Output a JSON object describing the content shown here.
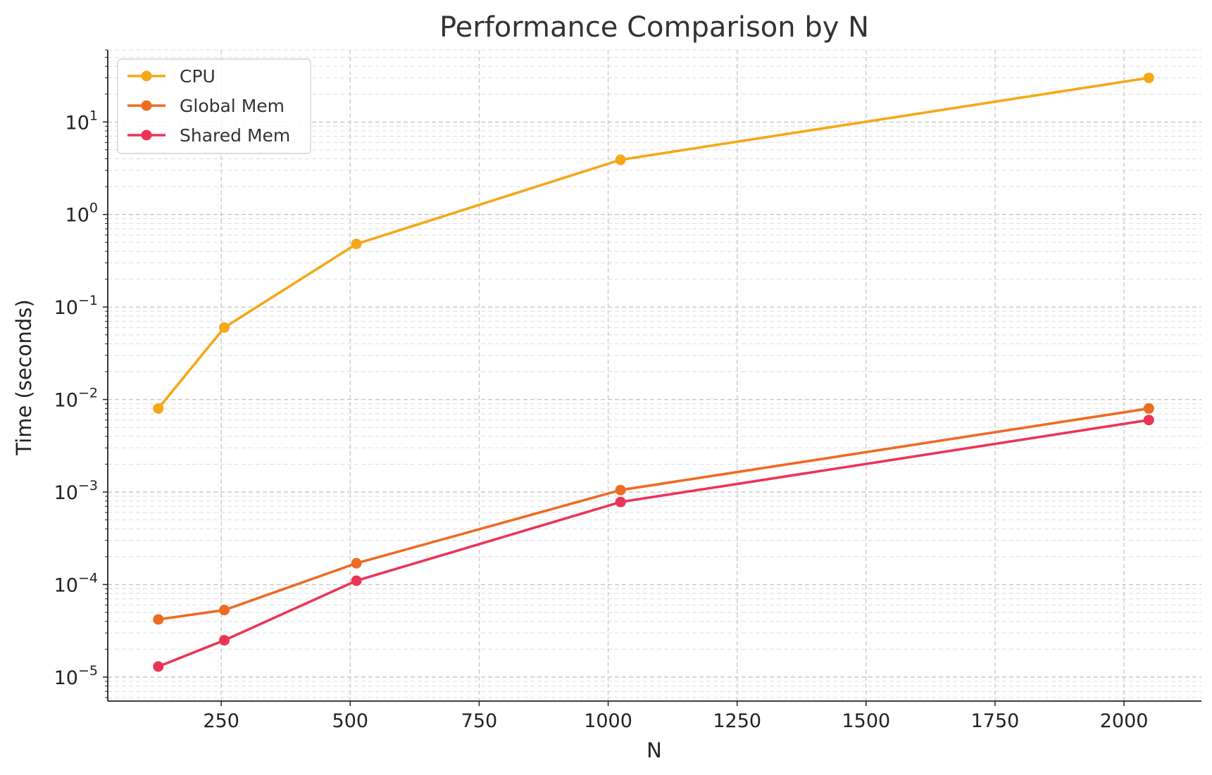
{
  "chart_data": {
    "type": "line",
    "title": "Performance Comparison by N",
    "xlabel": "N",
    "ylabel": "Time (seconds)",
    "x": [
      128,
      256,
      512,
      1024,
      2048
    ],
    "xlim": [
      30,
      2150
    ],
    "xticks": [
      250,
      500,
      750,
      1000,
      1250,
      1500,
      1750,
      2000
    ],
    "xtick_labels": [
      "250",
      "500",
      "750",
      "1000",
      "1250",
      "1500",
      "1750",
      "2000"
    ],
    "yscale": "log",
    "ylim": [
      5.5e-06,
      60
    ],
    "yticks": [
      1e-05,
      0.0001,
      0.001,
      0.01,
      0.1,
      1,
      10
    ],
    "ytick_labels": [
      {
        "base": "10",
        "exp": "−5"
      },
      {
        "base": "10",
        "exp": "−4"
      },
      {
        "base": "10",
        "exp": "−3"
      },
      {
        "base": "10",
        "exp": "−2"
      },
      {
        "base": "10",
        "exp": "−1"
      },
      {
        "base": "10",
        "exp": "0"
      },
      {
        "base": "10",
        "exp": "1"
      }
    ],
    "grid": true,
    "legend_position": "top-left",
    "series": [
      {
        "name": "CPU",
        "color": "#F5A817",
        "values": [
          0.008,
          0.06,
          0.48,
          3.9,
          30
        ]
      },
      {
        "name": "Global Mem",
        "color": "#EE6B24",
        "values": [
          4.2e-05,
          5.3e-05,
          0.00017,
          0.00105,
          0.008
        ]
      },
      {
        "name": "Shared Mem",
        "color": "#EB3558",
        "values": [
          1.3e-05,
          2.5e-05,
          0.00011,
          0.00078,
          0.006
        ]
      }
    ]
  }
}
